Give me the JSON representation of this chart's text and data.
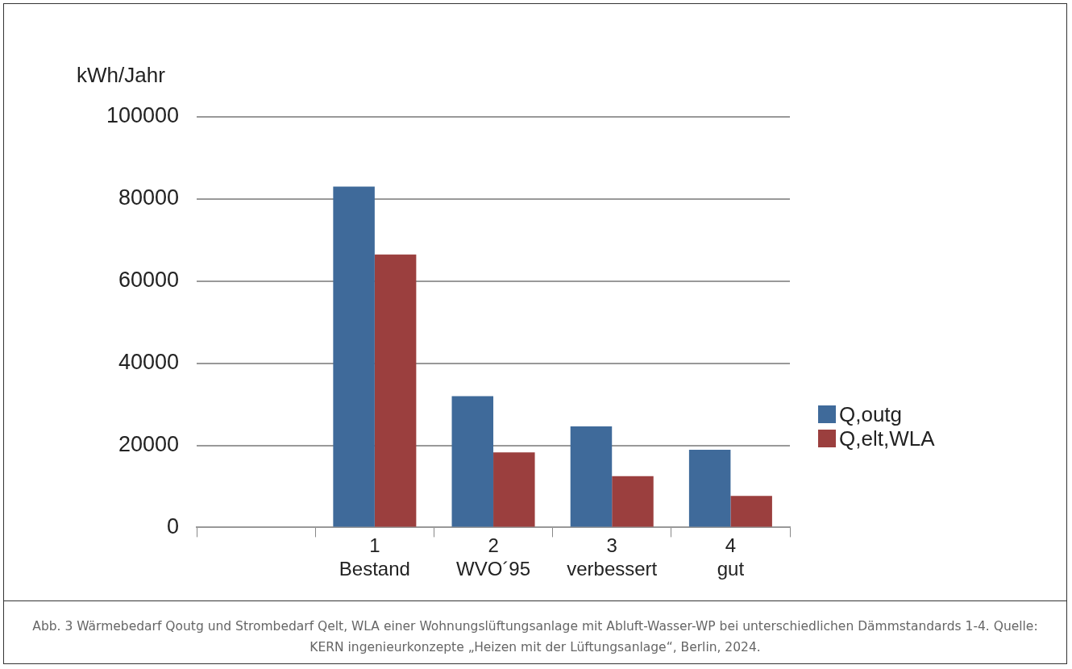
{
  "chart_data": {
    "type": "bar",
    "ylabel": "kWh/Jahr",
    "categories": [
      null,
      "1\nBestand",
      "2\nWVO´95",
      "3\nverbessert",
      "4\ngut"
    ],
    "series": [
      {
        "name": "Q,outg",
        "color": "#3f6a9a",
        "values": [
          null,
          83000,
          32000,
          24600,
          18900
        ]
      },
      {
        "name": "Q,elt,WLA",
        "color": "#9b3f3e",
        "values": [
          null,
          66500,
          18300,
          12500,
          7700
        ]
      }
    ],
    "ylim": [
      0,
      100000
    ],
    "yticks": [
      0,
      20000,
      40000,
      60000,
      80000,
      100000
    ],
    "grid": "y",
    "legend": "right",
    "annotations": [
      "Abb. 3 Wärmebedarf Qoutg und Strombedarf Qelt, WLA einer Wohnungslüftungsanlage mit Abluft-Wasser-WP bei unterschiedlichen Dämmstandards 1-4. Quelle: KERN ingenieurkonzepte „Heizen mit der Lüftungsanlage“, Berlin, 2024."
    ]
  }
}
